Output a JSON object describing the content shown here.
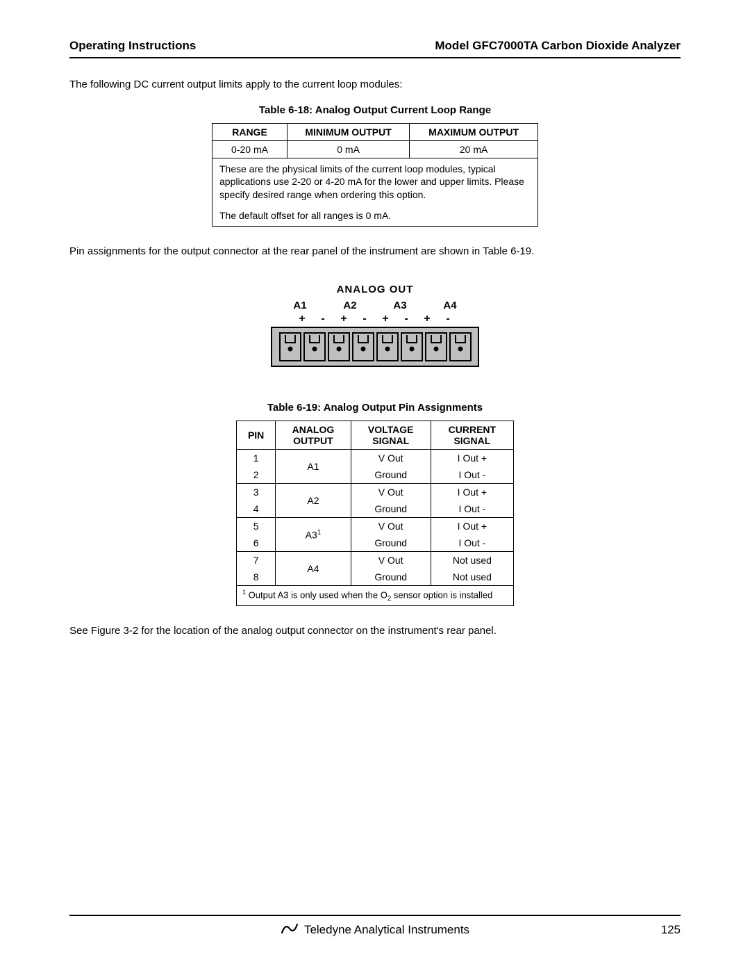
{
  "header": {
    "left": "Operating Instructions",
    "right": "Model GFC7000TA Carbon Dioxide Analyzer"
  },
  "intro_para": "The following DC current output limits apply to the current loop modules:",
  "table1": {
    "caption": "Table 6-18:   Analog Output Current Loop Range",
    "columns": [
      "RANGE",
      "MINIMUM OUTPUT",
      "MAXIMUM OUTPUT"
    ],
    "row": [
      "0-20 mA",
      "0 mA",
      "20 mA"
    ],
    "note1": "These are the physical limits of the current loop modules, typical applications use 2-20 or 4-20 mA for the lower and upper limits.  Please specify desired range when ordering this option.",
    "note2": "The default offset for all ranges is 0 mA."
  },
  "pin_para": "Pin assignments for the output connector at the rear panel of the instrument are shown in Table 6-19.",
  "connector": {
    "title": "ANALOG OUT",
    "channels": [
      "A1",
      "A2",
      "A3",
      "A4"
    ],
    "signs": [
      "+",
      "-",
      "+",
      "-",
      "+",
      "-",
      "+",
      "-"
    ],
    "pin_count": 8,
    "colors": {
      "outer_border": "#000000",
      "fill": "#bfbfbf",
      "dot": "#000000"
    }
  },
  "table2": {
    "caption": "Table 6-19:   Analog Output Pin Assignments",
    "columns": [
      "PIN",
      "ANALOG OUTPUT",
      "VOLTAGE SIGNAL",
      "CURRENT SIGNAL"
    ],
    "groups": [
      {
        "analog": "A1",
        "sup": "",
        "rows": [
          {
            "pin": "1",
            "volt": "V Out",
            "curr": "I Out +"
          },
          {
            "pin": "2",
            "volt": "Ground",
            "curr": "I Out -"
          }
        ]
      },
      {
        "analog": "A2",
        "sup": "",
        "rows": [
          {
            "pin": "3",
            "volt": "V Out",
            "curr": "I Out +"
          },
          {
            "pin": "4",
            "volt": "Ground",
            "curr": "I Out -"
          }
        ]
      },
      {
        "analog": "A3",
        "sup": "1",
        "rows": [
          {
            "pin": "5",
            "volt": "V Out",
            "curr": "I Out +"
          },
          {
            "pin": "6",
            "volt": "Ground",
            "curr": "I Out -"
          }
        ]
      },
      {
        "analog": "A4",
        "sup": "",
        "rows": [
          {
            "pin": "7",
            "volt": "V Out",
            "curr": "Not used"
          },
          {
            "pin": "8",
            "volt": "Ground",
            "curr": "Not used"
          }
        ]
      }
    ],
    "footnote_sup": "1",
    "footnote_text_pre": " Output A3 is only used when the O",
    "footnote_sub": "2",
    "footnote_text_post": " sensor option is installed"
  },
  "closing_para": "See Figure 3-2 for the location of the analog output connector on the instrument's rear panel.",
  "footer": {
    "company": "Teledyne Analytical Instruments",
    "page": "125"
  }
}
